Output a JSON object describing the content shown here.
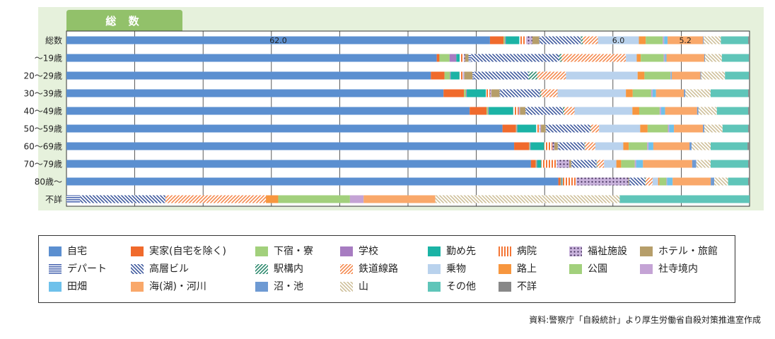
{
  "chart_data": {
    "type": "bar",
    "stacked": true,
    "orientation": "horizontal",
    "percent": true,
    "title": "総 数",
    "categories": [
      "総数",
      "〜19歳",
      "20〜29歳",
      "30〜39歳",
      "40〜49歳",
      "50〜59歳",
      "60〜69歳",
      "70〜79歳",
      "80歳〜",
      "不詳"
    ],
    "xlim": [
      0,
      100
    ],
    "grid": true,
    "legend_position": "bottom",
    "series": [
      {
        "name": "自宅",
        "color": "#5b8fd0",
        "pattern": "solid",
        "values": [
          62.0,
          54.8,
          53.4,
          55.2,
          59.2,
          64.6,
          65.6,
          68.0,
          71.0,
          0
        ]
      },
      {
        "name": "実家(自宅を除く)",
        "color": "#f06a2c",
        "pattern": "solid",
        "values": [
          2.0,
          0.4,
          2.0,
          3.0,
          2.5,
          2.0,
          2.2,
          0.7,
          0.3,
          0
        ]
      },
      {
        "name": "下宿・寮",
        "color": "#a2d07c",
        "pattern": "solid",
        "values": [
          0.2,
          1.5,
          0.8,
          0.3,
          0.2,
          0.1,
          0.1,
          0.1,
          0.1,
          0
        ]
      },
      {
        "name": "学校",
        "color": "#a77cc1",
        "pattern": "solid",
        "values": [
          0.1,
          1.0,
          0.1,
          0.1,
          0.1,
          0.1,
          0.1,
          0.1,
          0.1,
          0
        ]
      },
      {
        "name": "勤め先",
        "color": "#1bb3a5",
        "pattern": "solid",
        "values": [
          2.0,
          0.5,
          1.3,
          2.8,
          3.6,
          2.8,
          2.0,
          0.6,
          0.1,
          0
        ]
      },
      {
        "name": "病院",
        "color": "#f47636",
        "pattern": "vertical",
        "values": [
          1.0,
          0.6,
          0.5,
          0.6,
          0.8,
          0.5,
          1.2,
          2.3,
          2.0,
          0
        ]
      },
      {
        "name": "福祉施設",
        "color": "#a77cc1",
        "pattern": "dots",
        "values": [
          0.9,
          0.2,
          0.2,
          0.2,
          0.2,
          0.2,
          0.3,
          1.8,
          7.5,
          0
        ]
      },
      {
        "name": "ホテル・旅館",
        "color": "#b69e6a",
        "pattern": "solid",
        "values": [
          1.0,
          0.5,
          1.2,
          1.2,
          0.8,
          0.7,
          0.5,
          0.3,
          0.1,
          0
        ]
      },
      {
        "name": "デパート",
        "color": "#4a66b0",
        "pattern": "horizontal",
        "values": [
          0.1,
          0.4,
          0.2,
          0.1,
          0.1,
          0.1,
          0.1,
          0.1,
          0.1,
          2.0
        ]
      },
      {
        "name": "高層ビル",
        "color": "#3f5a9e",
        "pattern": "diag-back",
        "values": [
          6.0,
          13.0,
          8.0,
          5.8,
          5.4,
          6.5,
          3.8,
          3.6,
          2.2,
          12.5
        ]
      },
      {
        "name": "駅構内",
        "color": "#2d8a6e",
        "pattern": "diag-fwd",
        "values": [
          0.3,
          0.4,
          1.3,
          0.2,
          0.2,
          0.1,
          0.1,
          0.1,
          0.1,
          0
        ]
      },
      {
        "name": "鉄道線路",
        "color": "#f58a4f",
        "pattern": "diag-fwd",
        "values": [
          2.2,
          9.5,
          4.2,
          2.4,
          1.5,
          1.2,
          1.5,
          1.0,
          1.0,
          14.7
        ]
      },
      {
        "name": "乗物",
        "color": "#b9d2ed",
        "pattern": "solid",
        "values": [
          6.0,
          1.6,
          10.5,
          10.0,
          8.5,
          6.1,
          4.1,
          1.8,
          0.8,
          0
        ]
      },
      {
        "name": "路上",
        "color": "#f7963f",
        "pattern": "solid",
        "values": [
          1.0,
          0.6,
          1.0,
          1.0,
          1.0,
          1.1,
          0.8,
          0.7,
          0.2,
          1.8
        ]
      },
      {
        "name": "公園",
        "color": "#a2d07c",
        "pattern": "solid",
        "values": [
          2.5,
          3.4,
          3.8,
          2.7,
          3.0,
          3.0,
          2.7,
          2.0,
          1.0,
          10.5
        ]
      },
      {
        "name": "社寺境内",
        "color": "#c4a3d5",
        "pattern": "solid",
        "values": [
          0.2,
          0.2,
          0.1,
          0.2,
          0.2,
          0.2,
          0.2,
          0.2,
          0.1,
          2.0
        ]
      },
      {
        "name": "田畑",
        "color": "#6ec1eb",
        "pattern": "solid",
        "values": [
          0.5,
          0.2,
          0.1,
          0.5,
          0.6,
          0.7,
          0.7,
          1.0,
          0.8,
          0
        ]
      },
      {
        "name": "海(湖)・河川",
        "color": "#f9a86a",
        "pattern": "solid",
        "values": [
          5.2,
          5.6,
          4.2,
          4.1,
          4.7,
          4.3,
          5.3,
          7.2,
          5.5,
          10.5
        ]
      },
      {
        "name": "沼・池",
        "color": "#6e9ad3",
        "pattern": "solid",
        "values": [
          0.1,
          0.1,
          0.1,
          0.2,
          0.2,
          0.2,
          0.3,
          0.6,
          0.5,
          0
        ]
      },
      {
        "name": "山",
        "color": "#cfc09a",
        "pattern": "diag-back",
        "values": [
          2.5,
          2.5,
          3.5,
          3.7,
          2.7,
          2.7,
          2.8,
          2.1,
          2.0,
          27.0
        ]
      },
      {
        "name": "その他",
        "color": "#5fc5b9",
        "pattern": "solid",
        "values": [
          4.0,
          4.0,
          3.5,
          5.5,
          4.6,
          3.8,
          5.4,
          5.5,
          2.9,
          19.0
        ]
      },
      {
        "name": "不詳",
        "color": "#888888",
        "pattern": "solid",
        "values": [
          0.2,
          0.1,
          0.1,
          0.2,
          0.2,
          0.2,
          0.3,
          0.2,
          0.2,
          0
        ]
      }
    ],
    "data_labels": [
      {
        "category": "総数",
        "series": "自宅",
        "text": "62.0"
      },
      {
        "category": "総数",
        "series": "乗物",
        "text": "6.0"
      },
      {
        "category": "総数",
        "series": "海(湖)・河川",
        "text": "5.2"
      }
    ]
  },
  "legend": {
    "items": [
      {
        "label": "自宅",
        "series": 0
      },
      {
        "label": "実家(自宅を除く)",
        "series": 1
      },
      {
        "label": "下宿・寮",
        "series": 2
      },
      {
        "label": "学校",
        "series": 3
      },
      {
        "label": "勤め先",
        "series": 4
      },
      {
        "label": "病院",
        "series": 5
      },
      {
        "label": "福祉施設",
        "series": 6
      },
      {
        "label": "ホテル・旅館",
        "series": 7
      },
      {
        "label": "デパート",
        "series": 8
      },
      {
        "label": "高層ビル",
        "series": 9
      },
      {
        "label": "駅構内",
        "series": 10
      },
      {
        "label": "鉄道線路",
        "series": 11
      },
      {
        "label": "乗物",
        "series": 12
      },
      {
        "label": "路上",
        "series": 13
      },
      {
        "label": "公園",
        "series": 14
      },
      {
        "label": "社寺境内",
        "series": 15
      },
      {
        "label": "田畑",
        "series": 16
      },
      {
        "label": "海(湖)・河川",
        "series": 17
      },
      {
        "label": "沼・池",
        "series": 18
      },
      {
        "label": "山",
        "series": 19
      },
      {
        "label": "その他",
        "series": 20
      },
      {
        "label": "不詳",
        "series": 21
      }
    ]
  },
  "source_note": "資料:警察庁「自殺統計」より厚生労働省自殺対策推進室作成"
}
